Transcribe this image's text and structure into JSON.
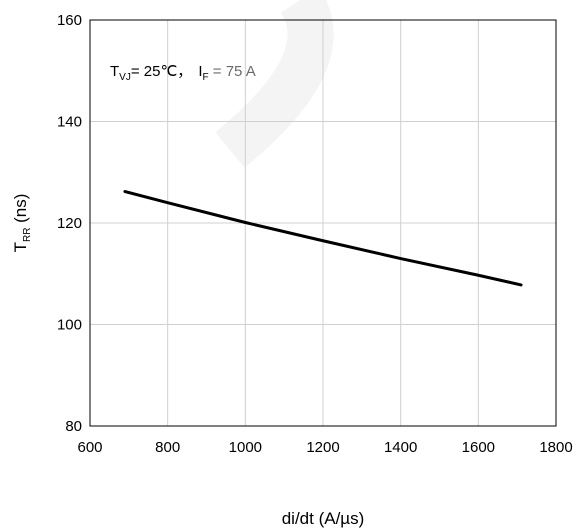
{
  "chart_data": {
    "type": "line",
    "title": "",
    "xlabel": "di/dt (A/µs)",
    "ylabel": {
      "main": "T",
      "sub": "RR",
      "unit": " (ns)"
    },
    "xlim": [
      600,
      1800
    ],
    "ylim": [
      80,
      160
    ],
    "xticks": [
      600,
      800,
      1000,
      1200,
      1400,
      1600,
      1800
    ],
    "yticks": [
      80,
      100,
      120,
      140,
      160
    ],
    "grid": true,
    "series": [
      {
        "color": "#000000",
        "x": [
          690,
          800,
          1000,
          1200,
          1400,
          1600,
          1710
        ],
        "y": [
          126.2,
          124.0,
          120.1,
          116.5,
          113.0,
          109.7,
          107.8
        ]
      }
    ],
    "annotation": {
      "t_main": "T",
      "t_sub": "VJ",
      "t_rest": "= 25℃，",
      "i_main": "I",
      "i_sub": "F",
      "i_rest": " = 75 A"
    }
  }
}
